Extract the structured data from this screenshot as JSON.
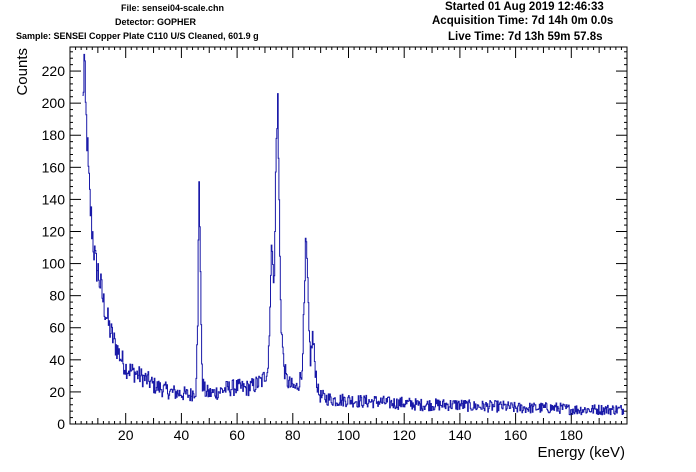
{
  "header": {
    "file": "File: sensei04-scale.chn",
    "detector": "Detector: GOPHER",
    "sample": "Sample: SENSEI Copper Plate C110 U/S Cleaned, 601.9 g",
    "started": "Started 01 Aug 2019 12:46:33",
    "acquisition": "Acquisition Time: 7d 14h 0m 0.0s",
    "live": "Live Time: 7d 13h 59m 57.8s"
  },
  "chart_data": {
    "type": "line",
    "title": "",
    "xlabel": "Energy (keV)",
    "ylabel": "Counts",
    "xlim": [
      0,
      200
    ],
    "ylim": [
      0,
      235
    ],
    "xticks": [
      20,
      40,
      60,
      80,
      100,
      120,
      140,
      160,
      180
    ],
    "yticks": [
      0,
      20,
      40,
      60,
      80,
      100,
      120,
      140,
      160,
      180,
      200,
      220
    ],
    "grid": false,
    "legend": "none",
    "series": [
      {
        "color": "#1a1aa8",
        "x": [
          4.5,
          5,
          5.5,
          6,
          6.5,
          7,
          7.5,
          8,
          9,
          10,
          11,
          12,
          13,
          14,
          16,
          18,
          20,
          22,
          25,
          28,
          30,
          33,
          36,
          40,
          43,
          45,
          45.8,
          46.2,
          46.6,
          47,
          47.5,
          48.5,
          50,
          53,
          56,
          60,
          63,
          66,
          69,
          71,
          72,
          72.6,
          73.2,
          73.8,
          74.4,
          74.9,
          75.3,
          75.8,
          76.5,
          77.5,
          79,
          81,
          83,
          84,
          84.6,
          85.1,
          85.6,
          86.3,
          87,
          87.6,
          88.3,
          89,
          90,
          92,
          95,
          100,
          105,
          110,
          115,
          120,
          125,
          130,
          135,
          140,
          145,
          150,
          155,
          160,
          165,
          170,
          175,
          180,
          185,
          190,
          195,
          199
        ],
        "y": [
          200,
          226,
          195,
          180,
          155,
          140,
          128,
          118,
          100,
          95,
          85,
          75,
          68,
          60,
          50,
          42,
          35,
          33,
          30,
          27,
          24,
          22,
          20,
          19,
          18,
          21,
          60,
          160,
          120,
          55,
          25,
          20,
          19,
          20,
          22,
          23,
          22,
          24,
          27,
          35,
          90,
          120,
          80,
          160,
          208,
          150,
          95,
          60,
          40,
          28,
          24,
          22,
          30,
          70,
          112,
          95,
          60,
          40,
          55,
          42,
          30,
          20,
          17,
          16,
          15,
          15,
          14,
          14,
          13,
          13,
          12,
          12,
          12,
          12,
          11,
          11,
          11,
          10,
          10,
          10,
          10,
          9,
          9,
          9,
          9,
          9
        ]
      }
    ]
  }
}
